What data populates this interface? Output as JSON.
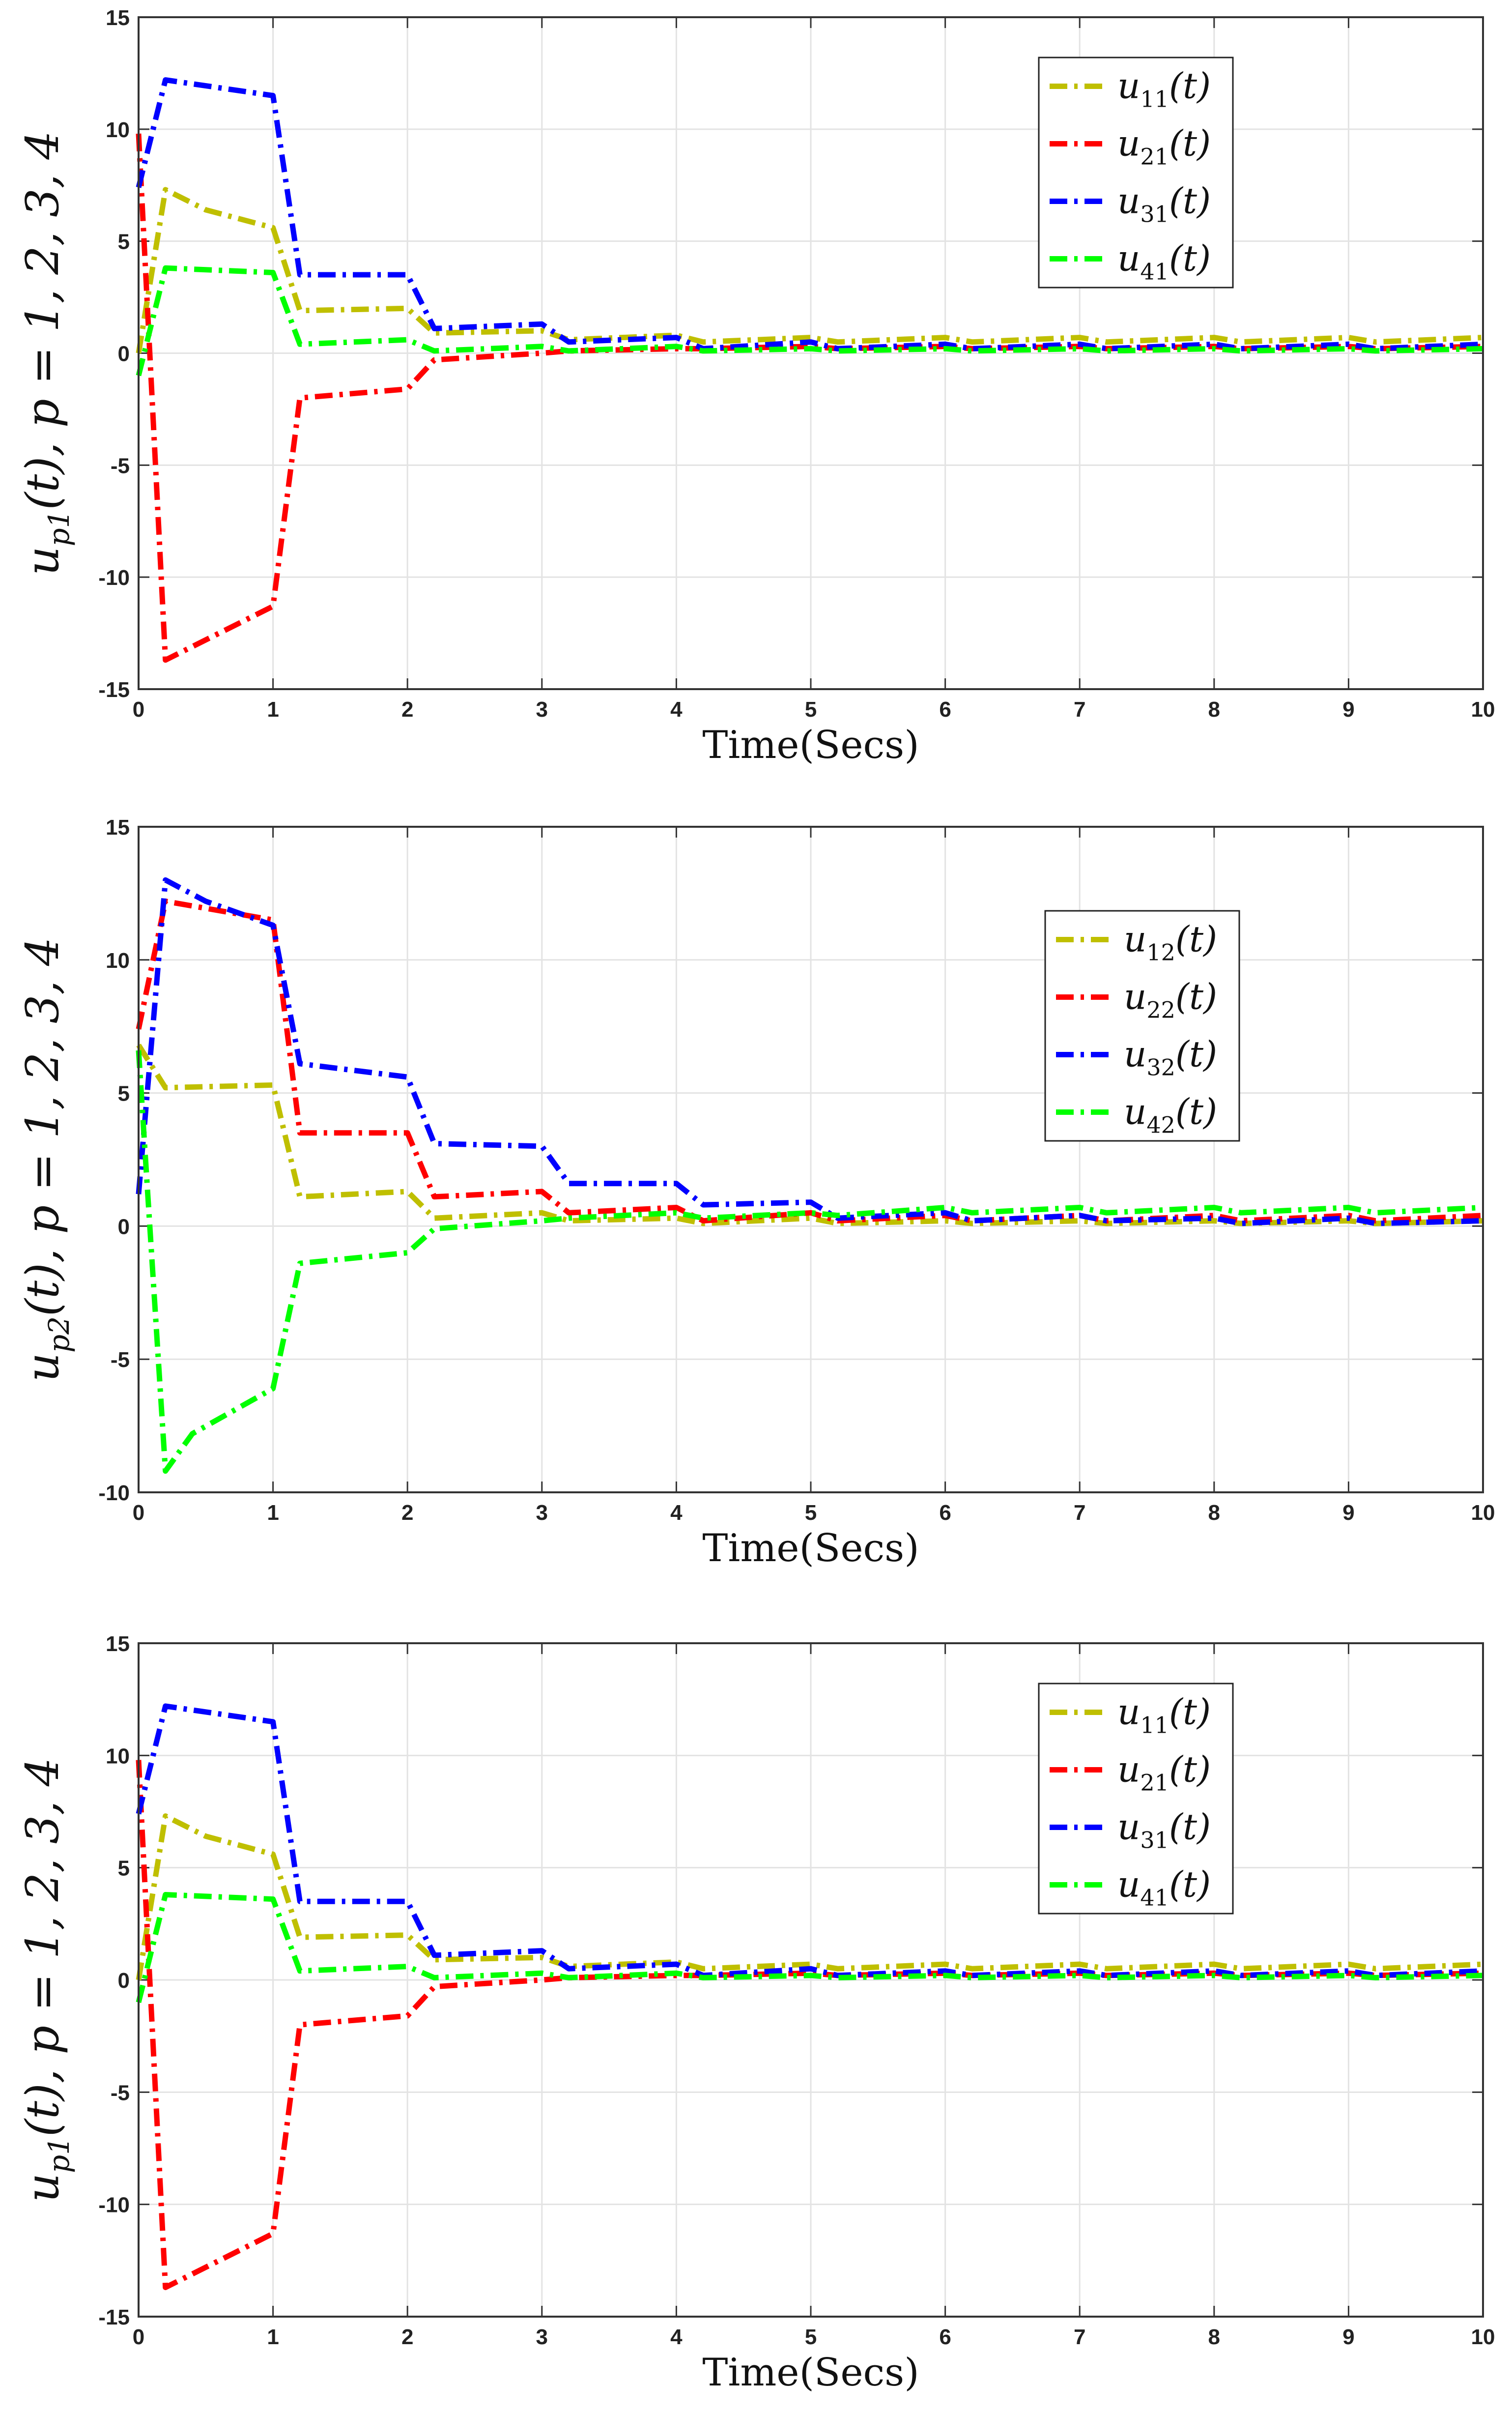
{
  "colors": {
    "yellow": "#bfbf00",
    "red": "#ff0000",
    "blue": "#0000ff",
    "green": "#00ff00"
  },
  "chart_data": [
    {
      "type": "line",
      "xlabel": "Time(Secs)",
      "ylabel": {
        "main": "u",
        "sub": "p1",
        "rest": "(t), p = 1, 2, 3, 4"
      },
      "xlim": [
        0,
        10
      ],
      "ylim": [
        -15,
        15
      ],
      "xticks": [
        "0",
        "1",
        "2",
        "3",
        "4",
        "5",
        "6",
        "7",
        "8",
        "9",
        "10"
      ],
      "yticks": [
        "15",
        "10",
        "5",
        "0",
        "-5",
        "-10",
        "-15"
      ],
      "legend_position": "top-right",
      "series": [
        {
          "label": "u",
          "sub": "11",
          "color": "#bfbf00",
          "x": [
            0,
            0.2,
            0.5,
            1,
            1.2,
            2,
            2.2,
            3,
            3.2,
            4,
            4.2,
            5,
            5.2,
            6,
            6.2,
            7,
            7.2,
            8,
            8.2,
            9,
            9.2,
            10
          ],
          "y": [
            0,
            7.3,
            6.4,
            5.6,
            1.9,
            2.0,
            0.9,
            1.0,
            0.6,
            0.8,
            0.5,
            0.7,
            0.5,
            0.7,
            0.5,
            0.7,
            0.5,
            0.7,
            0.5,
            0.7,
            0.5,
            0.7
          ]
        },
        {
          "label": "u",
          "sub": "21",
          "color": "#ff0000",
          "x": [
            0,
            0.2,
            1,
            1.2,
            2,
            2.2,
            3,
            3.2,
            4,
            4.2,
            5,
            5.2,
            6,
            6.2,
            7,
            7.2,
            8,
            8.2,
            9,
            9.2,
            10
          ],
          "y": [
            9.8,
            -13.7,
            -11.3,
            -2.0,
            -1.6,
            -0.3,
            0.0,
            0.1,
            0.2,
            0.2,
            0.3,
            0.2,
            0.3,
            0.2,
            0.3,
            0.2,
            0.3,
            0.2,
            0.3,
            0.2,
            0.3
          ]
        },
        {
          "label": "u",
          "sub": "31",
          "color": "#0000ff",
          "x": [
            0,
            0.2,
            1,
            1.2,
            2,
            2.2,
            3,
            3.2,
            4,
            4.2,
            5,
            5.2,
            6,
            6.2,
            7,
            7.2,
            8,
            8.2,
            9,
            9.2,
            10
          ],
          "y": [
            7.4,
            12.2,
            11.5,
            3.5,
            3.5,
            1.1,
            1.3,
            0.5,
            0.7,
            0.2,
            0.5,
            0.2,
            0.4,
            0.2,
            0.4,
            0.2,
            0.4,
            0.2,
            0.4,
            0.2,
            0.4
          ]
        },
        {
          "label": "u",
          "sub": "41",
          "color": "#00ff00",
          "x": [
            0,
            0.2,
            1,
            1.2,
            2,
            2.2,
            3,
            3.2,
            4,
            4.2,
            5,
            5.2,
            6,
            6.2,
            7,
            7.2,
            8,
            8.2,
            9,
            9.2,
            10
          ],
          "y": [
            -1.0,
            3.8,
            3.6,
            0.4,
            0.6,
            0.1,
            0.3,
            0.1,
            0.3,
            0.1,
            0.2,
            0.1,
            0.2,
            0.1,
            0.2,
            0.1,
            0.2,
            0.1,
            0.2,
            0.1,
            0.2
          ]
        }
      ]
    },
    {
      "type": "line",
      "xlabel": "Time(Secs)",
      "ylabel": {
        "main": "u",
        "sub": "p2",
        "rest": "(t), p = 1, 2, 3, 4"
      },
      "xlim": [
        0,
        10
      ],
      "ylim": [
        -10,
        15
      ],
      "xticks": [
        "0",
        "1",
        "2",
        "3",
        "4",
        "5",
        "6",
        "7",
        "8",
        "9",
        "10"
      ],
      "yticks": [
        "15",
        "10",
        "5",
        "0",
        "-5",
        "-10"
      ],
      "legend_position": "upper-right",
      "series": [
        {
          "label": "u",
          "sub": "12",
          "color": "#bfbf00",
          "x": [
            0,
            0.2,
            1,
            1.2,
            2,
            2.2,
            3,
            3.2,
            4,
            4.2,
            5,
            5.2,
            6,
            6.2,
            7,
            7.2,
            8,
            8.2,
            9,
            9.2,
            10
          ],
          "y": [
            6.8,
            5.2,
            5.3,
            1.1,
            1.3,
            0.3,
            0.5,
            0.2,
            0.3,
            0.1,
            0.3,
            0.1,
            0.2,
            0.1,
            0.2,
            0.1,
            0.2,
            0.1,
            0.2,
            0.1,
            0.2
          ]
        },
        {
          "label": "u",
          "sub": "22",
          "color": "#ff0000",
          "x": [
            0,
            0.2,
            1,
            1.2,
            2,
            2.2,
            3,
            3.2,
            4,
            4.2,
            5,
            5.2,
            6,
            6.2,
            7,
            7.2,
            8,
            8.2,
            9,
            9.2,
            10
          ],
          "y": [
            7.4,
            12.2,
            11.5,
            3.5,
            3.5,
            1.1,
            1.3,
            0.5,
            0.7,
            0.2,
            0.5,
            0.2,
            0.4,
            0.2,
            0.4,
            0.2,
            0.4,
            0.2,
            0.4,
            0.2,
            0.4
          ]
        },
        {
          "label": "u",
          "sub": "32",
          "color": "#0000ff",
          "x": [
            0,
            0.2,
            0.5,
            1,
            1.2,
            2,
            2.2,
            3,
            3.2,
            4,
            4.2,
            5,
            5.2,
            6,
            6.2,
            7,
            7.2,
            8,
            8.2,
            9,
            9.2,
            10
          ],
          "y": [
            1.2,
            13.0,
            12.2,
            11.3,
            6.1,
            5.6,
            3.1,
            3.0,
            1.6,
            1.6,
            0.8,
            0.9,
            0.3,
            0.5,
            0.2,
            0.4,
            0.2,
            0.3,
            0.1,
            0.3,
            0.1,
            0.2
          ]
        },
        {
          "label": "u",
          "sub": "42",
          "color": "#00ff00",
          "x": [
            0,
            0.2,
            0.4,
            1,
            1.2,
            2,
            2.2,
            3,
            3.2,
            4,
            4.2,
            5,
            5.2,
            6,
            6.2,
            7,
            7.2,
            8,
            8.2,
            9,
            9.2,
            10
          ],
          "y": [
            6.6,
            -9.2,
            -7.8,
            -6.1,
            -1.4,
            -1.0,
            -0.1,
            0.2,
            0.3,
            0.5,
            0.3,
            0.5,
            0.4,
            0.7,
            0.5,
            0.7,
            0.5,
            0.7,
            0.5,
            0.7,
            0.5,
            0.7
          ]
        }
      ]
    },
    {
      "type": "line",
      "xlabel": "Time(Secs)",
      "ylabel": {
        "main": "u",
        "sub": "p1",
        "rest": "(t), p = 1, 2, 3, 4"
      },
      "xlim": [
        0,
        10
      ],
      "ylim": [
        -15,
        15
      ],
      "xticks": [
        "0",
        "1",
        "2",
        "3",
        "4",
        "5",
        "6",
        "7",
        "8",
        "9",
        "10"
      ],
      "yticks": [
        "15",
        "10",
        "5",
        "0",
        "-5",
        "-10",
        "-15"
      ],
      "legend_position": "top-right",
      "series": [
        {
          "label": "u",
          "sub": "11",
          "color": "#bfbf00",
          "x": [
            0,
            0.2,
            0.5,
            1,
            1.2,
            2,
            2.2,
            3,
            3.2,
            4,
            4.2,
            5,
            5.2,
            6,
            6.2,
            7,
            7.2,
            8,
            8.2,
            9,
            9.2,
            10
          ],
          "y": [
            0,
            7.3,
            6.4,
            5.6,
            1.9,
            2.0,
            0.9,
            1.0,
            0.6,
            0.8,
            0.5,
            0.7,
            0.5,
            0.7,
            0.5,
            0.7,
            0.5,
            0.7,
            0.5,
            0.7,
            0.5,
            0.7
          ]
        },
        {
          "label": "u",
          "sub": "21",
          "color": "#ff0000",
          "x": [
            0,
            0.2,
            1,
            1.2,
            2,
            2.2,
            3,
            3.2,
            4,
            4.2,
            5,
            5.2,
            6,
            6.2,
            7,
            7.2,
            8,
            8.2,
            9,
            9.2,
            10
          ],
          "y": [
            9.8,
            -13.7,
            -11.3,
            -2.0,
            -1.6,
            -0.3,
            0.0,
            0.1,
            0.2,
            0.2,
            0.3,
            0.2,
            0.3,
            0.2,
            0.3,
            0.2,
            0.3,
            0.2,
            0.3,
            0.2,
            0.3
          ]
        },
        {
          "label": "u",
          "sub": "31",
          "color": "#0000ff",
          "x": [
            0,
            0.2,
            1,
            1.2,
            2,
            2.2,
            3,
            3.2,
            4,
            4.2,
            5,
            5.2,
            6,
            6.2,
            7,
            7.2,
            8,
            8.2,
            9,
            9.2,
            10
          ],
          "y": [
            7.4,
            12.2,
            11.5,
            3.5,
            3.5,
            1.1,
            1.3,
            0.5,
            0.7,
            0.2,
            0.5,
            0.2,
            0.4,
            0.2,
            0.4,
            0.2,
            0.4,
            0.2,
            0.4,
            0.2,
            0.4
          ]
        },
        {
          "label": "u",
          "sub": "41",
          "color": "#00ff00",
          "x": [
            0,
            0.2,
            1,
            1.2,
            2,
            2.2,
            3,
            3.2,
            4,
            4.2,
            5,
            5.2,
            6,
            6.2,
            7,
            7.2,
            8,
            8.2,
            9,
            9.2,
            10
          ],
          "y": [
            -1.0,
            3.8,
            3.6,
            0.4,
            0.6,
            0.1,
            0.3,
            0.1,
            0.3,
            0.1,
            0.2,
            0.1,
            0.2,
            0.1,
            0.2,
            0.1,
            0.2,
            0.1,
            0.2,
            0.1,
            0.2
          ]
        }
      ]
    }
  ]
}
